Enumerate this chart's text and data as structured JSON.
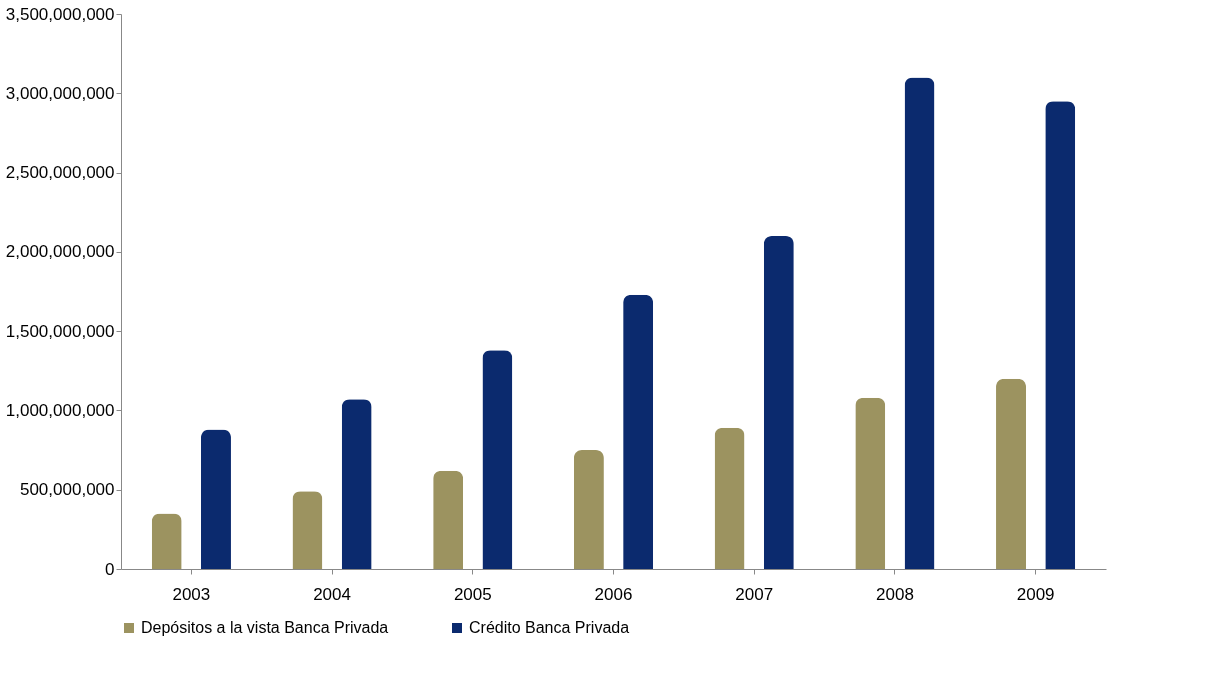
{
  "chart_data": {
    "type": "bar",
    "categories": [
      "2003",
      "2004",
      "2005",
      "2006",
      "2007",
      "2008",
      "2009"
    ],
    "series": [
      {
        "name": "Depósitos a la vista Banca Privada",
        "color": "#9c9360",
        "values": [
          350000000,
          490000000,
          620000000,
          750000000,
          890000000,
          1080000000,
          1200000000
        ]
      },
      {
        "name": "Crédito Banca Privada",
        "color": "#0b2a6e",
        "values": [
          880000000,
          1070000000,
          1380000000,
          1730000000,
          2100000000,
          3100000000,
          2950000000
        ]
      }
    ],
    "ylim": [
      0,
      3500000000
    ],
    "yticks": [
      0,
      {
        "value": 500000000,
        "label": "500,000,000"
      },
      {
        "value": 1000000000,
        "label": "1,000,000,000"
      },
      {
        "value": 1500000000,
        "label": "1,500,000,000"
      },
      {
        "value": 2000000000,
        "label": "2,000,000,000"
      },
      {
        "value": 2500000000,
        "label": "2,500,000,000"
      },
      {
        "value": 3000000000,
        "label": "3,000,000,000"
      },
      {
        "value": 3500000000,
        "label": "3,500,000,000"
      }
    ],
    "grid": false,
    "legend": "bottom"
  }
}
